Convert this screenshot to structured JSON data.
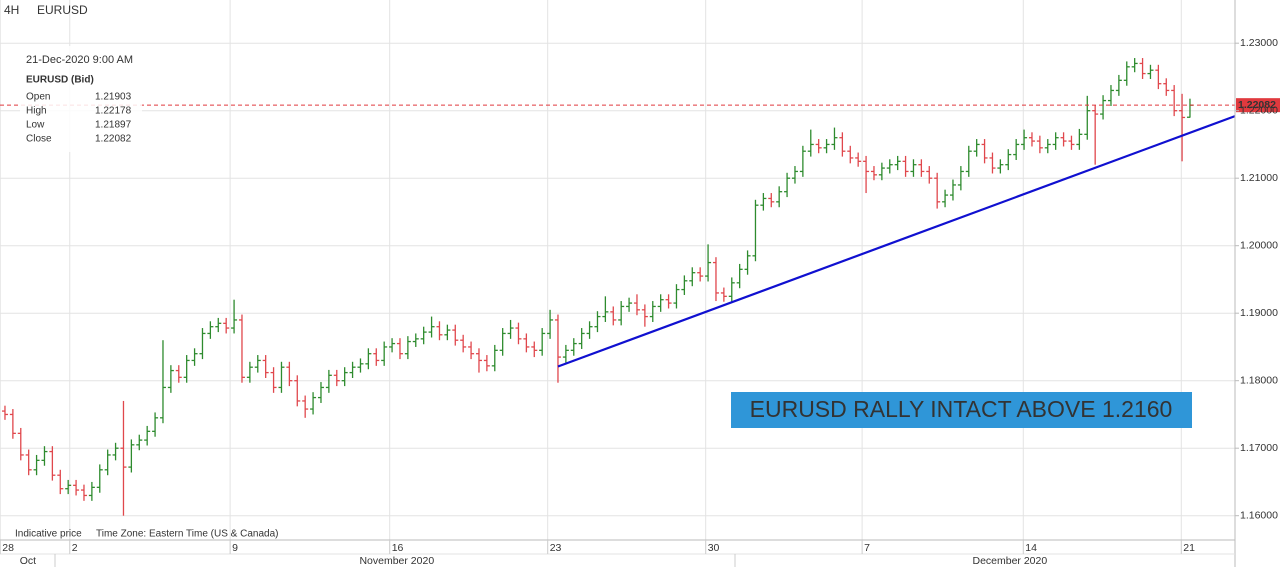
{
  "header": {
    "timeframe": "4H",
    "symbol": "EURUSD"
  },
  "info_box": {
    "date": "21-Dec-2020 9:00 AM",
    "instrument": "EURUSD (Bid)",
    "labels": [
      "Open",
      "High",
      "Low",
      "Close"
    ]
  },
  "footer": {
    "note": "Indicative price",
    "timezone": "Time Zone: Eastern Time (US & Canada)"
  },
  "chart_data": {
    "type": "ohlc",
    "up_color": "#2e8b2e",
    "down_color": "#e0474c",
    "open": [
      1.1755,
      1.175,
      1.1722,
      1.169,
      1.1668,
      1.1682,
      1.1695,
      1.166,
      1.164,
      1.1645,
      1.1638,
      1.163,
      1.1642,
      1.1668,
      1.169,
      1.17,
      1.1672,
      1.1705,
      1.1712,
      1.1725,
      1.1745,
      1.179,
      1.1815,
      1.1805,
      1.183,
      1.184,
      1.187,
      1.188,
      1.1885,
      1.1878,
      1.189,
      1.1805,
      1.182,
      1.183,
      1.1812,
      1.179,
      1.182,
      1.18,
      1.177,
      1.1758,
      1.1775,
      1.179,
      1.1808,
      1.18,
      1.1812,
      1.182,
      1.1825,
      1.184,
      1.183,
      1.185,
      1.1855,
      1.184,
      1.1858,
      1.1862,
      1.1872,
      1.188,
      1.1868,
      1.1875,
      1.186,
      1.185,
      1.184,
      1.183,
      1.1822,
      1.1845,
      1.187,
      1.1878,
      1.1862,
      1.185,
      1.1845,
      1.187,
      1.189,
      1.1835,
      1.1845,
      1.1855,
      1.187,
      1.188,
      1.1895,
      1.1902,
      1.189,
      1.191,
      1.1915,
      1.1905,
      1.1895,
      1.191,
      1.192,
      1.1915,
      1.1935,
      1.1948,
      1.196,
      1.1955,
      1.1975,
      1.193,
      1.1925,
      1.1945,
      1.1965,
      1.1985,
      1.206,
      1.207,
      1.2065,
      1.208,
      1.21,
      1.211,
      1.214,
      1.215,
      1.2145,
      1.215,
      1.216,
      1.214,
      1.213,
      1.2125,
      1.211,
      1.2105,
      1.2115,
      1.212,
      1.2125,
      1.211,
      1.212,
      1.211,
      1.21,
      1.2065,
      1.2075,
      1.209,
      1.211,
      1.214,
      1.215,
      1.213,
      1.2115,
      1.212,
      1.2135,
      1.215,
      1.216,
      1.2155,
      1.2145,
      1.215,
      1.216,
      1.2155,
      1.215,
      1.2165,
      1.22,
      1.2195,
      1.2215,
      1.223,
      1.2245,
      1.2265,
      1.227,
      1.2255,
      1.226,
      1.224,
      1.223,
      1.22,
      1.21903
    ],
    "high": [
      1.1763,
      1.1758,
      1.173,
      1.1698,
      1.169,
      1.1703,
      1.1703,
      1.1668,
      1.1653,
      1.1653,
      1.1646,
      1.165,
      1.1676,
      1.1698,
      1.1708,
      1.177,
      1.1713,
      1.172,
      1.1733,
      1.1753,
      1.186,
      1.1823,
      1.1823,
      1.1838,
      1.1848,
      1.1878,
      1.1888,
      1.1893,
      1.1893,
      1.192,
      1.1898,
      1.1828,
      1.1838,
      1.1838,
      1.182,
      1.1828,
      1.1828,
      1.1808,
      1.1778,
      1.1783,
      1.1798,
      1.1816,
      1.1816,
      1.182,
      1.1828,
      1.1833,
      1.1848,
      1.1848,
      1.1858,
      1.1863,
      1.1863,
      1.1866,
      1.187,
      1.188,
      1.1895,
      1.1888,
      1.1883,
      1.1883,
      1.1868,
      1.1858,
      1.1848,
      1.1838,
      1.1853,
      1.1878,
      1.189,
      1.1886,
      1.187,
      1.1858,
      1.1878,
      1.1905,
      1.1898,
      1.1853,
      1.1863,
      1.1878,
      1.1888,
      1.1903,
      1.1925,
      1.191,
      1.1918,
      1.1923,
      1.1928,
      1.1913,
      1.1918,
      1.1928,
      1.1928,
      1.1943,
      1.1956,
      1.1968,
      1.1968,
      1.2002,
      1.1983,
      1.1938,
      1.1953,
      1.1973,
      1.1993,
      1.2068,
      1.2078,
      1.2078,
      1.2088,
      1.2108,
      1.2118,
      1.2148,
      1.2172,
      1.2158,
      1.2158,
      1.2175,
      1.2168,
      1.2148,
      1.2138,
      1.2133,
      1.2118,
      1.2123,
      1.2128,
      1.2133,
      1.2133,
      1.2128,
      1.2128,
      1.2118,
      1.2108,
      1.2083,
      1.2098,
      1.2118,
      1.2148,
      1.2158,
      1.2158,
      1.2138,
      1.2128,
      1.2143,
      1.2158,
      1.2172,
      1.2168,
      1.2163,
      1.2158,
      1.2168,
      1.2168,
      1.2163,
      1.2173,
      1.2222,
      1.2208,
      1.2223,
      1.2238,
      1.2253,
      1.2273,
      1.2278,
      1.2278,
      1.2268,
      1.2268,
      1.2248,
      1.2238,
      1.2225,
      1.22178
    ],
    "low": [
      1.1742,
      1.1714,
      1.1682,
      1.166,
      1.166,
      1.1674,
      1.1652,
      1.1632,
      1.1632,
      1.163,
      1.1622,
      1.1622,
      1.1634,
      1.166,
      1.1682,
      1.16,
      1.1664,
      1.1697,
      1.1704,
      1.1717,
      1.1737,
      1.1782,
      1.1797,
      1.1797,
      1.1822,
      1.1832,
      1.1862,
      1.1872,
      1.187,
      1.187,
      1.1797,
      1.1797,
      1.1812,
      1.1804,
      1.1782,
      1.1782,
      1.1792,
      1.1762,
      1.1745,
      1.175,
      1.1767,
      1.1782,
      1.1792,
      1.1792,
      1.1804,
      1.1812,
      1.1817,
      1.1822,
      1.1822,
      1.1842,
      1.1832,
      1.1832,
      1.185,
      1.1854,
      1.1864,
      1.186,
      1.186,
      1.1852,
      1.1842,
      1.1832,
      1.1812,
      1.1814,
      1.1814,
      1.1837,
      1.1862,
      1.1854,
      1.1842,
      1.1835,
      1.1837,
      1.1862,
      1.1797,
      1.1827,
      1.1837,
      1.1847,
      1.1862,
      1.1872,
      1.1887,
      1.1882,
      1.1882,
      1.1902,
      1.1897,
      1.188,
      1.1887,
      1.1902,
      1.1907,
      1.1907,
      1.1927,
      1.194,
      1.1947,
      1.1947,
      1.1918,
      1.1917,
      1.1917,
      1.1937,
      1.1957,
      1.1977,
      1.2052,
      1.2057,
      1.2057,
      1.2072,
      1.2092,
      1.2102,
      1.2132,
      1.2137,
      1.2137,
      1.2142,
      1.2132,
      1.2122,
      1.2117,
      1.2078,
      1.2097,
      1.2097,
      1.2107,
      1.2112,
      1.2102,
      1.2102,
      1.2102,
      1.2092,
      1.2055,
      1.2057,
      1.2067,
      1.2082,
      1.2102,
      1.2132,
      1.2122,
      1.2107,
      1.2107,
      1.2112,
      1.2127,
      1.2142,
      1.2147,
      1.2137,
      1.2137,
      1.2142,
      1.2147,
      1.2142,
      1.2142,
      1.2157,
      1.212,
      1.2187,
      1.2207,
      1.2222,
      1.2237,
      1.2257,
      1.2247,
      1.2247,
      1.2232,
      1.2222,
      1.2192,
      1.2125,
      1.21897
    ],
    "close": [
      1.175,
      1.1722,
      1.169,
      1.1668,
      1.1682,
      1.1695,
      1.166,
      1.164,
      1.1645,
      1.1638,
      1.163,
      1.1642,
      1.1668,
      1.169,
      1.17,
      1.1672,
      1.1705,
      1.1712,
      1.1725,
      1.1745,
      1.179,
      1.1815,
      1.1805,
      1.183,
      1.184,
      1.187,
      1.188,
      1.1885,
      1.1878,
      1.189,
      1.1805,
      1.182,
      1.183,
      1.1812,
      1.179,
      1.182,
      1.18,
      1.177,
      1.1758,
      1.1775,
      1.179,
      1.1808,
      1.18,
      1.1812,
      1.182,
      1.1825,
      1.184,
      1.183,
      1.185,
      1.1855,
      1.184,
      1.1858,
      1.1862,
      1.1872,
      1.188,
      1.1868,
      1.1875,
      1.186,
      1.185,
      1.184,
      1.183,
      1.1822,
      1.1845,
      1.187,
      1.1878,
      1.1862,
      1.185,
      1.1845,
      1.187,
      1.189,
      1.1835,
      1.1845,
      1.1855,
      1.187,
      1.188,
      1.1895,
      1.1902,
      1.189,
      1.191,
      1.1915,
      1.1905,
      1.1895,
      1.191,
      1.192,
      1.1915,
      1.1935,
      1.1948,
      1.196,
      1.1955,
      1.1975,
      1.193,
      1.1925,
      1.1945,
      1.1965,
      1.1985,
      1.206,
      1.207,
      1.2065,
      1.208,
      1.21,
      1.211,
      1.214,
      1.215,
      1.2145,
      1.215,
      1.216,
      1.214,
      1.213,
      1.2125,
      1.211,
      1.2105,
      1.2115,
      1.212,
      1.2125,
      1.211,
      1.212,
      1.211,
      1.21,
      1.2065,
      1.2075,
      1.209,
      1.211,
      1.214,
      1.215,
      1.213,
      1.2115,
      1.212,
      1.2135,
      1.215,
      1.216,
      1.2155,
      1.2145,
      1.215,
      1.216,
      1.2155,
      1.215,
      1.2165,
      1.22,
      1.2195,
      1.2215,
      1.223,
      1.2245,
      1.2265,
      1.227,
      1.2255,
      1.226,
      1.224,
      1.223,
      1.22,
      1.219,
      1.22082
    ],
    "xlim": [
      -0.63,
      155.7
    ],
    "ylim": [
      1.1564,
      1.2364
    ],
    "yticks": [
      {
        "value": 1.16,
        "label": "1.16000"
      },
      {
        "value": 1.17,
        "label": "1.17000"
      },
      {
        "value": 1.18,
        "label": "1.18000"
      },
      {
        "value": 1.19,
        "label": "1.19000"
      },
      {
        "value": 1.2,
        "label": "1.20000"
      },
      {
        "value": 1.21,
        "label": "1.21000"
      },
      {
        "value": 1.22,
        "label": "1.22000"
      },
      {
        "value": 1.23,
        "label": "1.23000"
      }
    ],
    "xticks": [
      {
        "value": -0.6,
        "label": "28"
      },
      {
        "value": 8.2,
        "label": "2"
      },
      {
        "value": 28.5,
        "label": "9"
      },
      {
        "value": 48.7,
        "label": "16"
      },
      {
        "value": 68.7,
        "label": "23"
      },
      {
        "value": 88.7,
        "label": "30"
      },
      {
        "value": 108.5,
        "label": "7"
      },
      {
        "value": 128.9,
        "label": "14"
      },
      {
        "value": 148.9,
        "label": "21"
      }
    ],
    "month_labels": [
      {
        "value": 2.9,
        "label": "Oct"
      },
      {
        "value": 49.6,
        "label": "November 2020"
      },
      {
        "value": 127.2,
        "label": "December 2020"
      }
    ],
    "grid": true,
    "current_price_color": "#e0393e",
    "trendline": {
      "color": "#1010d0",
      "x": [
        70,
        155.7
      ],
      "values": [
        1.1821,
        1.2192
      ]
    },
    "annotation": {
      "text": "EURUSD RALLY INTACT ABOVE 1.2160",
      "color": "#2f96d8"
    }
  }
}
